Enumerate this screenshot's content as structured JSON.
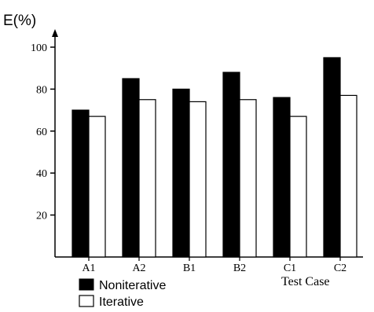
{
  "chart_data": {
    "type": "bar",
    "title": "",
    "ylabel": "E(%)",
    "xlabel": "Test Case",
    "categories": [
      "A1",
      "A2",
      "B1",
      "B2",
      "C1",
      "C2"
    ],
    "series": [
      {
        "name": "Noniterative",
        "values": [
          70,
          85,
          80,
          88,
          76,
          95
        ],
        "color": "#000000"
      },
      {
        "name": "Iterative",
        "values": [
          67,
          75,
          74,
          75,
          67,
          77
        ],
        "color": "#ffffff"
      }
    ],
    "ylim": [
      0,
      100
    ],
    "yticks": [
      20,
      40,
      60,
      80,
      100
    ],
    "grid": false,
    "legend": "bottom-left"
  }
}
